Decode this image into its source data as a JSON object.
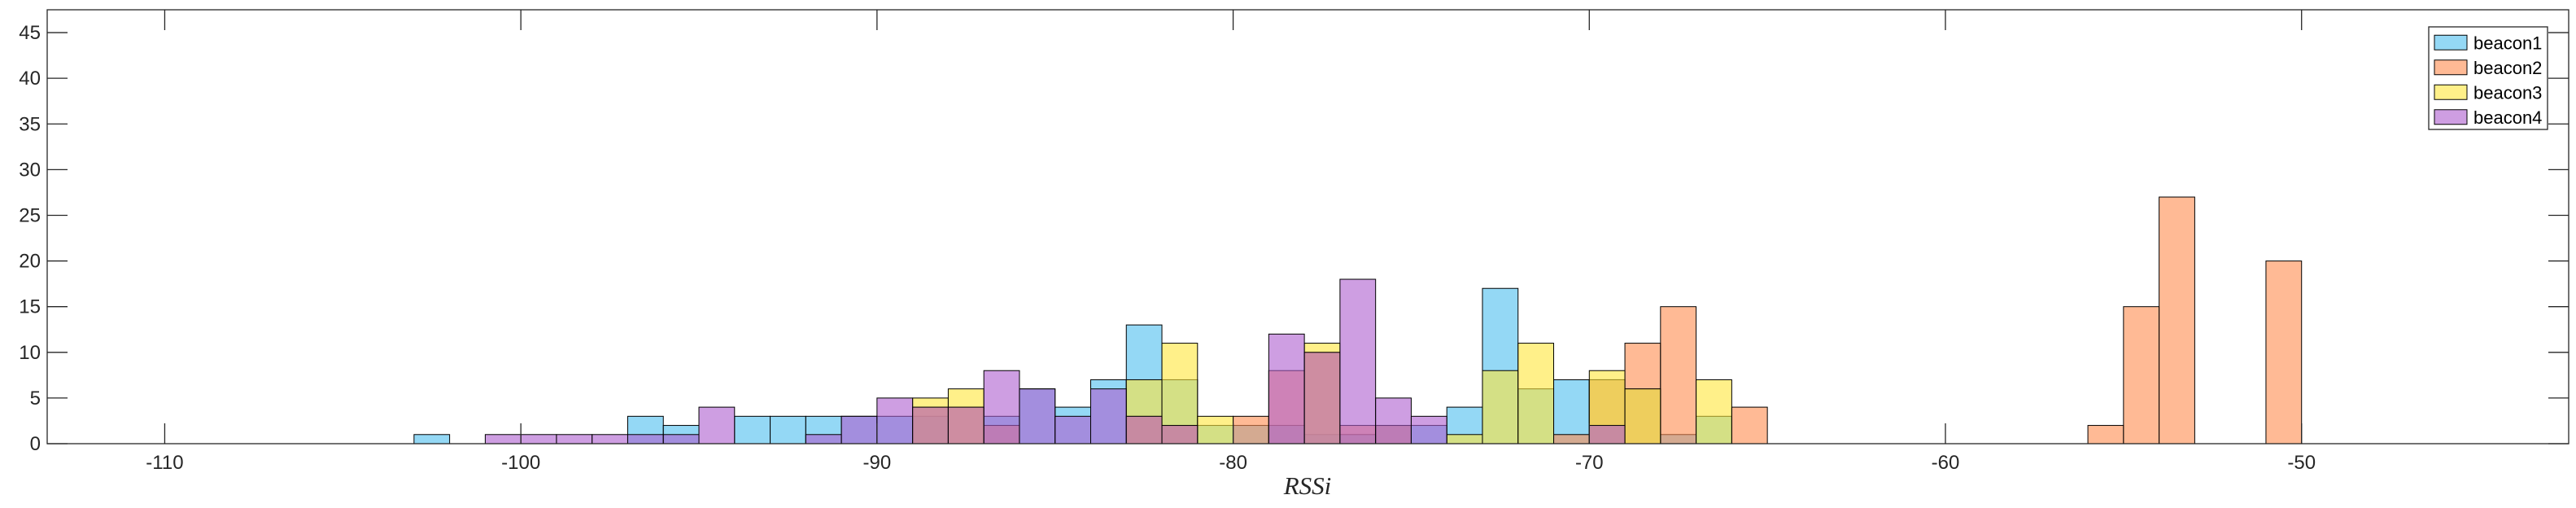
{
  "chart_data": {
    "type": "histogram",
    "xlabel": "RSSi",
    "ylabel": "",
    "title": "",
    "xlim": [
      -113.3,
      -42.5
    ],
    "ylim": [
      0,
      47.5
    ],
    "xticks": [
      -110,
      -100,
      -90,
      -80,
      -70,
      -60,
      -50
    ],
    "yticks": [
      0,
      5,
      10,
      15,
      20,
      25,
      30,
      35,
      40,
      45
    ],
    "bin_width": 1,
    "grid": false,
    "legend_position": "top-right",
    "series": [
      {
        "name": "beacon1",
        "color": "#4DBEEE",
        "bins": [
          {
            "x": -103,
            "count": 1
          },
          {
            "x": -97,
            "count": 3
          },
          {
            "x": -96,
            "count": 2
          },
          {
            "x": -94,
            "count": 3
          },
          {
            "x": -93,
            "count": 3
          },
          {
            "x": -92,
            "count": 3
          },
          {
            "x": -91,
            "count": 3
          },
          {
            "x": -90,
            "count": 3
          },
          {
            "x": -89,
            "count": 3
          },
          {
            "x": -87,
            "count": 3
          },
          {
            "x": -86,
            "count": 6
          },
          {
            "x": -85,
            "count": 4
          },
          {
            "x": -84,
            "count": 7
          },
          {
            "x": -83,
            "count": 13
          },
          {
            "x": -82,
            "count": 7
          },
          {
            "x": -81,
            "count": 2
          },
          {
            "x": -80,
            "count": 2
          },
          {
            "x": -79,
            "count": 2
          },
          {
            "x": -78,
            "count": 1
          },
          {
            "x": -77,
            "count": 1
          },
          {
            "x": -76,
            "count": 2
          },
          {
            "x": -75,
            "count": 2
          },
          {
            "x": -74,
            "count": 4
          },
          {
            "x": -73,
            "count": 17
          },
          {
            "x": -72,
            "count": 6
          },
          {
            "x": -71,
            "count": 7
          },
          {
            "x": -70,
            "count": 7
          },
          {
            "x": -69,
            "count": 6
          },
          {
            "x": -68,
            "count": 1
          },
          {
            "x": -67,
            "count": 3
          }
        ]
      },
      {
        "name": "beacon2",
        "color": "#FF8C4F",
        "bins": [
          {
            "x": -89,
            "count": 4
          },
          {
            "x": -88,
            "count": 4
          },
          {
            "x": -87,
            "count": 2
          },
          {
            "x": -83,
            "count": 3
          },
          {
            "x": -82,
            "count": 2
          },
          {
            "x": -80,
            "count": 3
          },
          {
            "x": -79,
            "count": 8
          },
          {
            "x": -78,
            "count": 10
          },
          {
            "x": -77,
            "count": 2
          },
          {
            "x": -76,
            "count": 2
          },
          {
            "x": -71,
            "count": 1
          },
          {
            "x": -70,
            "count": 7
          },
          {
            "x": -69,
            "count": 11
          },
          {
            "x": -68,
            "count": 15
          },
          {
            "x": -66,
            "count": 4
          },
          {
            "x": -56,
            "count": 2
          },
          {
            "x": -55,
            "count": 15
          },
          {
            "x": -54,
            "count": 27
          },
          {
            "x": -51,
            "count": 20
          }
        ]
      },
      {
        "name": "beacon3",
        "color": "#FFE63B",
        "bins": [
          {
            "x": -89,
            "count": 5
          },
          {
            "x": -88,
            "count": 6
          },
          {
            "x": -83,
            "count": 7
          },
          {
            "x": -82,
            "count": 11
          },
          {
            "x": -81,
            "count": 3
          },
          {
            "x": -78,
            "count": 11
          },
          {
            "x": -74,
            "count": 1
          },
          {
            "x": -73,
            "count": 8
          },
          {
            "x": -72,
            "count": 11
          },
          {
            "x": -70,
            "count": 8
          },
          {
            "x": -69,
            "count": 6
          },
          {
            "x": -67,
            "count": 7
          }
        ]
      },
      {
        "name": "beacon4",
        "color": "#AE5ECF",
        "bins": [
          {
            "x": -101,
            "count": 1
          },
          {
            "x": -100,
            "count": 1
          },
          {
            "x": -99,
            "count": 1
          },
          {
            "x": -98,
            "count": 1
          },
          {
            "x": -97,
            "count": 1
          },
          {
            "x": -96,
            "count": 1
          },
          {
            "x": -95,
            "count": 4
          },
          {
            "x": -92,
            "count": 1
          },
          {
            "x": -91,
            "count": 3
          },
          {
            "x": -90,
            "count": 5
          },
          {
            "x": -89,
            "count": 4
          },
          {
            "x": -88,
            "count": 4
          },
          {
            "x": -87,
            "count": 8
          },
          {
            "x": -86,
            "count": 6
          },
          {
            "x": -85,
            "count": 3
          },
          {
            "x": -84,
            "count": 6
          },
          {
            "x": -83,
            "count": 3
          },
          {
            "x": -82,
            "count": 2
          },
          {
            "x": -79,
            "count": 12
          },
          {
            "x": -78,
            "count": 10
          },
          {
            "x": -77,
            "count": 18
          },
          {
            "x": -76,
            "count": 5
          },
          {
            "x": -75,
            "count": 3
          },
          {
            "x": -70,
            "count": 2
          }
        ]
      }
    ]
  }
}
